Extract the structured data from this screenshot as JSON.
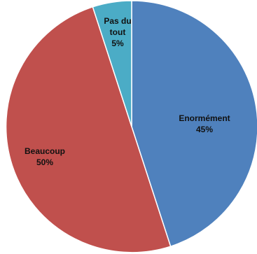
{
  "chart_data": {
    "type": "pie",
    "title": "",
    "slices": [
      {
        "label": "Enormément",
        "value": 45,
        "value_label": "45%",
        "color": "#4f81bd"
      },
      {
        "label": "Beaucoup",
        "value": 50,
        "value_label": "50%",
        "color": "#c0504d"
      },
      {
        "label": "Pas du tout",
        "value": 5,
        "value_label": "5%",
        "color": "#4bacc6"
      }
    ],
    "legend": "none",
    "start": "top",
    "direction": "clockwise"
  }
}
